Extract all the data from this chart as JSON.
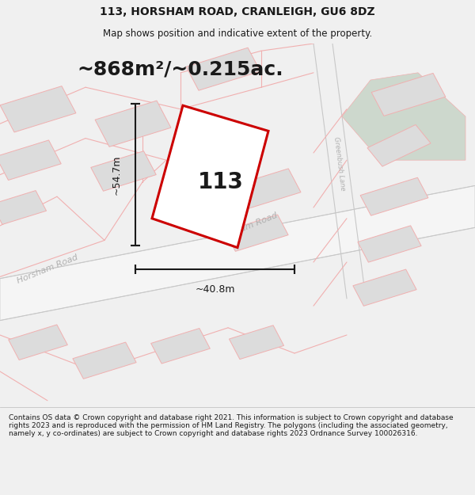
{
  "title_line1": "113, HORSHAM ROAD, CRANLEIGH, GU6 8DZ",
  "title_line2": "Map shows position and indicative extent of the property.",
  "area_label": "~868m²/~0.215ac.",
  "width_label": "~40.8m",
  "height_label": "~54.7m",
  "property_number": "113",
  "footer_text": "Contains OS data © Crown copyright and database right 2021. This information is subject to Crown copyright and database rights 2023 and is reproduced with the permission of HM Land Registry. The polygons (including the associated geometry, namely x, y co-ordinates) are subject to Crown copyright and database rights 2023 Ordnance Survey 100026316.",
  "bg_color": "#f0f0f0",
  "map_bg": "#f8f8f8",
  "road_color_pink": "#f0b0b0",
  "road_color_gray": "#c8c8c8",
  "building_fill": "#dcdcdc",
  "green_fill": "#cdd8cd",
  "plot_border_color": "#cc0000",
  "dim_color": "#1a1a1a",
  "road_label_color": "#b0b0b0",
  "title_color": "#1a1a1a",
  "footer_color": "#1a1a1a",
  "title_fontsize": 10,
  "subtitle_fontsize": 8.5,
  "area_fontsize": 18,
  "dim_fontsize": 9,
  "number_fontsize": 20,
  "footer_fontsize": 6.5
}
